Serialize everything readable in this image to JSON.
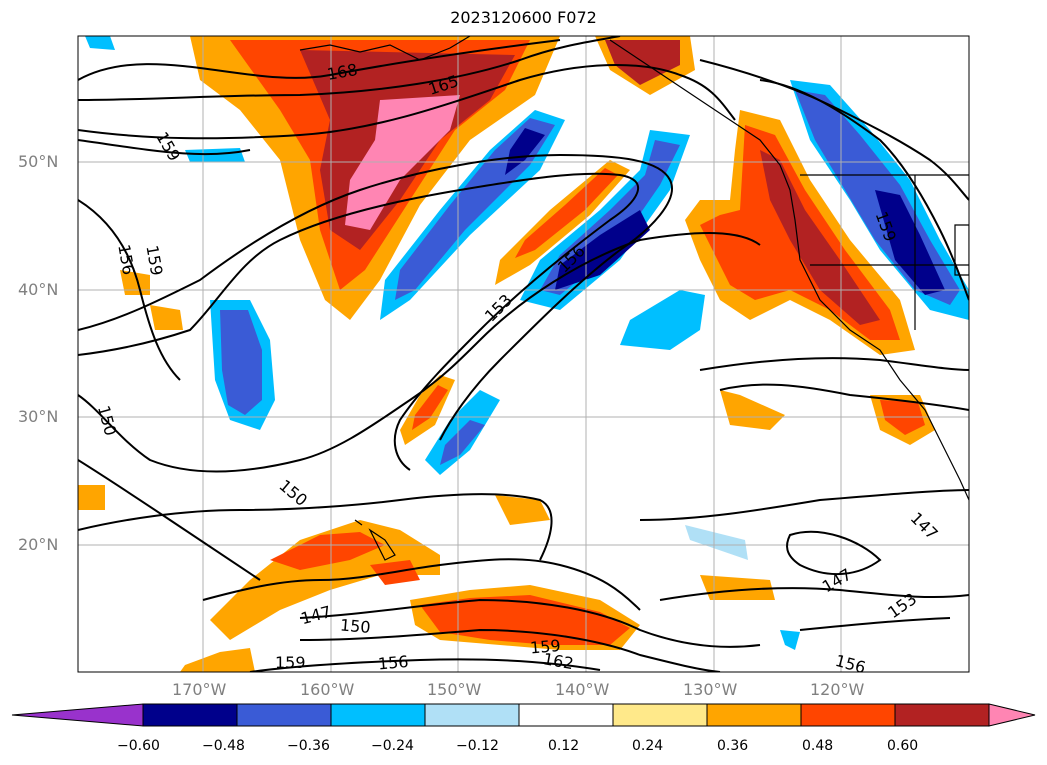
{
  "title": "2023120600 F072",
  "lat_labels": [
    "50°N",
    "40°N",
    "30°N",
    "20°N"
  ],
  "lon_labels": [
    "170°W",
    "160°W",
    "150°W",
    "140°W",
    "130°W",
    "120°W"
  ],
  "colorbar": {
    "ticks": [
      "−0.60",
      "−0.48",
      "−0.36",
      "−0.24",
      "−0.12",
      "0.12",
      "0.24",
      "0.36",
      "0.48",
      "0.60"
    ],
    "colors": [
      "#9932cc",
      "#00008b",
      "#3a5bd6",
      "#00bfff",
      "#b0e0f6",
      "#ffffff",
      "#ffe98a",
      "#ffa500",
      "#ff4500",
      "#b22222",
      "#ff85b3"
    ]
  },
  "contour_labels": {
    "c168": "168",
    "c165": "165",
    "c159a": "159",
    "c156a": "156",
    "c159b": "159",
    "c156b": "156",
    "c153a": "153",
    "c150a": "150",
    "c150b": "150",
    "c147a": "147",
    "c150c": "150",
    "c159c": "159",
    "c156c": "156",
    "c159d": "159",
    "c162": "162",
    "c147b": "147",
    "c153b": "153",
    "c156d": "156",
    "c147c": "147",
    "c159e": "159"
  }
}
